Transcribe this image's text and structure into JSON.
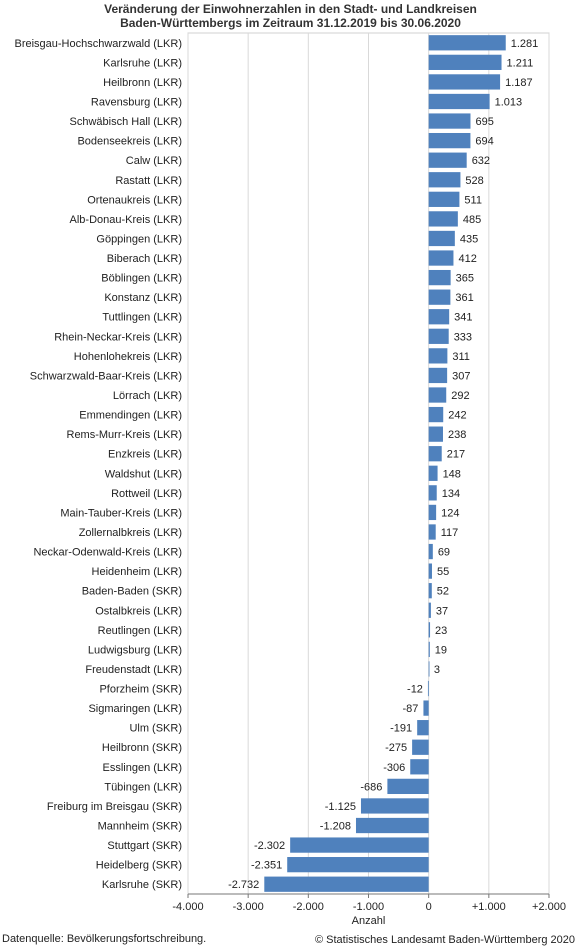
{
  "chart_data": {
    "type": "bar",
    "orientation": "horizontal",
    "title_line1": "Veränderung der Einwohnerzahlen in den Stadt- und Landkreisen",
    "title_line2": "Baden-Württembergs im Zeitraum 31.12.2019 bis 30.06.2020",
    "xlabel": "Anzahl",
    "xlim": [
      -4000,
      2000
    ],
    "x_ticks": [
      -4000,
      -3000,
      -2000,
      -1000,
      0,
      1000,
      2000
    ],
    "x_tick_labels": [
      "-4.000",
      "-3.000",
      "-2.000",
      "-1.000",
      "0",
      "+1.000",
      "+2.000"
    ],
    "grid": "vertical",
    "bar_color": "#4f81bd",
    "categories": [
      "Breisgau-Hochschwarzwald (LKR)",
      "Karlsruhe (LKR)",
      "Heilbronn (LKR)",
      "Ravensburg (LKR)",
      "Schwäbisch Hall (LKR)",
      "Bodenseekreis (LKR)",
      "Calw (LKR)",
      "Rastatt (LKR)",
      "Ortenaukreis (LKR)",
      "Alb-Donau-Kreis (LKR)",
      "Göppingen (LKR)",
      "Biberach (LKR)",
      "Böblingen (LKR)",
      "Konstanz (LKR)",
      "Tuttlingen (LKR)",
      "Rhein-Neckar-Kreis (LKR)",
      "Hohenlohekreis (LKR)",
      "Schwarzwald-Baar-Kreis (LKR)",
      "Lörrach (LKR)",
      "Emmendingen (LKR)",
      "Rems-Murr-Kreis  (LKR)",
      "Enzkreis (LKR)",
      "Waldshut (LKR)",
      "Rottweil (LKR)",
      "Main-Tauber-Kreis (LKR)",
      "Zollernalbkreis (LKR)",
      "Neckar-Odenwald-Kreis (LKR)",
      "Heidenheim (LKR)",
      "Baden-Baden (SKR)",
      "Ostalbkreis (LKR)",
      "Reutlingen (LKR)",
      "Ludwigsburg (LKR)",
      "Freudenstadt (LKR)",
      "Pforzheim (SKR)",
      "Sigmaringen (LKR)",
      "Ulm (SKR)",
      "Heilbronn (SKR)",
      "Esslingen (LKR)",
      "Tübingen (LKR)",
      "Freiburg im Breisgau (SKR)",
      "Mannheim (SKR)",
      "Stuttgart (SKR)",
      "Heidelberg (SKR)",
      "Karlsruhe (SKR)"
    ],
    "values": [
      1281,
      1211,
      1187,
      1013,
      695,
      694,
      632,
      528,
      511,
      485,
      435,
      412,
      365,
      361,
      341,
      333,
      311,
      307,
      292,
      242,
      238,
      217,
      148,
      134,
      124,
      117,
      69,
      55,
      52,
      37,
      23,
      19,
      3,
      -12,
      -87,
      -191,
      -275,
      -306,
      -686,
      -1125,
      -1208,
      -2302,
      -2351,
      -2732
    ],
    "value_labels": [
      "1.281",
      "1.211",
      "1.187",
      "1.013",
      "695",
      "694",
      "632",
      "528",
      "511",
      "485",
      "435",
      "412",
      "365",
      "361",
      "341",
      "333",
      "311",
      "307",
      "292",
      "242",
      "238",
      "217",
      "148",
      "134",
      "124",
      "117",
      "69",
      "55",
      "52",
      "37",
      "23",
      "19",
      "3",
      "-12",
      "-87",
      "-191",
      "-275",
      "-306",
      "-686",
      "-1.125",
      "-1.208",
      "-2.302",
      "-2.351",
      "-2.732"
    ]
  },
  "footer": {
    "source": "Datenquelle: Bevölkerungsfortschreibung.",
    "copyright": "© Statistisches Landesamt Baden-Württemberg 2020"
  }
}
